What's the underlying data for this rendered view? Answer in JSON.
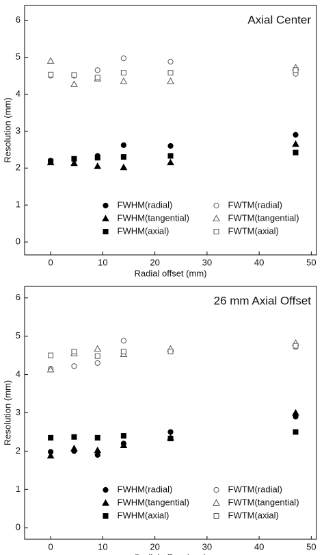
{
  "chart_data": [
    {
      "type": "scatter",
      "title": "Axial Center",
      "xlabel": "Radial offset (mm)",
      "ylabel": "Resolution (mm)",
      "xlim": [
        -5,
        51
      ],
      "ylim": [
        -0.35,
        6.4
      ],
      "xticks": [
        0,
        10,
        20,
        30,
        40,
        50
      ],
      "yticks": [
        0,
        1,
        2,
        3,
        4,
        5,
        6
      ],
      "legend": "lower center",
      "x": [
        0,
        4.5,
        9,
        14,
        23,
        47
      ],
      "series": [
        {
          "name": "FWHM(radial)",
          "marker": "circle",
          "filled": true,
          "color": "#000000",
          "values": [
            2.2,
            2.25,
            2.33,
            2.62,
            2.6,
            2.9
          ]
        },
        {
          "name": "FWTM(radial)",
          "marker": "circle",
          "filled": false,
          "color": "#555555",
          "values": [
            4.5,
            4.5,
            4.65,
            4.97,
            4.88,
            4.55
          ]
        },
        {
          "name": "FWHM(tangential)",
          "marker": "triangle",
          "filled": true,
          "color": "#000000",
          "values": [
            2.15,
            2.13,
            2.05,
            2.02,
            2.15,
            2.65
          ]
        },
        {
          "name": "FWTM(tangential)",
          "marker": "triangle",
          "filled": false,
          "color": "#555555",
          "values": [
            4.9,
            4.27,
            4.42,
            4.35,
            4.35,
            4.72
          ]
        },
        {
          "name": "FWHM(axial)",
          "marker": "square",
          "filled": true,
          "color": "#000000",
          "values": [
            2.18,
            2.25,
            2.28,
            2.3,
            2.33,
            2.42
          ]
        },
        {
          "name": "FWTM(axial)",
          "marker": "square",
          "filled": false,
          "color": "#555555",
          "values": [
            4.53,
            4.52,
            4.45,
            4.58,
            4.58,
            4.65
          ]
        }
      ]
    },
    {
      "type": "scatter",
      "title": "26 mm Axial Offset",
      "xlabel": "Radial offset (mm)",
      "ylabel": "Resolution (mm)",
      "xlim": [
        -5,
        51
      ],
      "ylim": [
        -0.3,
        6.3
      ],
      "xticks": [
        0,
        10,
        20,
        30,
        40,
        50
      ],
      "yticks": [
        0,
        1,
        2,
        3,
        4,
        5,
        6
      ],
      "legend": "lower center",
      "x": [
        0,
        4.5,
        9,
        14,
        23,
        47
      ],
      "series": [
        {
          "name": "FWHM(radial)",
          "marker": "circle",
          "filled": true,
          "color": "#000000",
          "values": [
            1.98,
            2.0,
            1.9,
            2.2,
            2.5,
            2.9
          ]
        },
        {
          "name": "FWTM(radial)",
          "marker": "circle",
          "filled": false,
          "color": "#555555",
          "values": [
            4.15,
            4.22,
            4.3,
            4.88,
            4.6,
            4.72
          ]
        },
        {
          "name": "FWHM(tangential)",
          "marker": "triangle",
          "filled": true,
          "color": "#000000",
          "values": [
            1.88,
            2.07,
            2.02,
            2.15,
            2.35,
            3.0
          ]
        },
        {
          "name": "FWTM(tangential)",
          "marker": "triangle",
          "filled": false,
          "color": "#555555",
          "values": [
            4.13,
            4.55,
            4.67,
            4.53,
            4.67,
            4.82
          ]
        },
        {
          "name": "FWHM(axial)",
          "marker": "square",
          "filled": true,
          "color": "#000000",
          "values": [
            2.35,
            2.37,
            2.35,
            2.4,
            2.33,
            2.5
          ]
        },
        {
          "name": "FWTM(axial)",
          "marker": "square",
          "filled": false,
          "color": "#555555",
          "values": [
            4.5,
            4.6,
            4.48,
            4.6,
            4.6,
            4.75
          ]
        }
      ]
    }
  ]
}
